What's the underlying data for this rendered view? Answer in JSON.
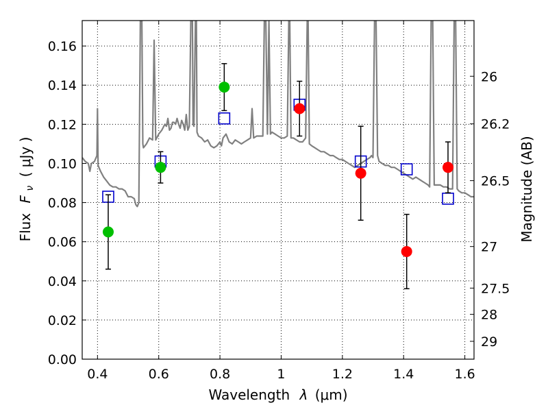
{
  "chart_data": {
    "type": "scatter",
    "xlabel_prefix": "Wavelength",
    "xlabel_symbol": "λ",
    "xlabel_unit": "(μm)",
    "ylabel_prefix": "Flux",
    "ylabel_symbol": "F",
    "ylabel_subscript": "ν",
    "ylabel_unit": "( μJy )",
    "y2label": "Magnitude (AB)",
    "xlim": [
      0.35,
      1.63
    ],
    "ylim": [
      0.0,
      0.173
    ],
    "grid": true,
    "x_ticks": [
      0.4,
      0.6,
      0.8,
      1.0,
      1.2,
      1.4,
      1.6
    ],
    "x_tick_labels": [
      "0.4",
      "0.6",
      "0.8",
      "1",
      "1.2",
      "1.4",
      "1.6"
    ],
    "y_ticks": [
      0.0,
      0.02,
      0.04,
      0.06,
      0.08,
      0.1,
      0.12,
      0.14,
      0.16
    ],
    "y_tick_labels": [
      "0.00",
      "0.02",
      "0.04",
      "0.06",
      "0.08",
      "0.10",
      "0.12",
      "0.14",
      "0.16"
    ],
    "mag_ticks": [
      {
        "label": "26",
        "mag": 26.0
      },
      {
        "label": "26.2",
        "mag": 26.2
      },
      {
        "label": "26.5",
        "mag": 26.5
      },
      {
        "label": "27",
        "mag": 27.0
      },
      {
        "label": "27.5",
        "mag": 27.5
      },
      {
        "label": "28",
        "mag": 28.0
      },
      {
        "label": "29",
        "mag": 29.0
      }
    ],
    "series": [
      {
        "kind": "line",
        "color": "#808080",
        "points": [
          [
            0.35,
            0.103
          ],
          [
            0.36,
            0.101
          ],
          [
            0.37,
            0.1
          ],
          [
            0.375,
            0.096
          ],
          [
            0.38,
            0.1
          ],
          [
            0.39,
            0.101
          ],
          [
            0.398,
            0.104
          ],
          [
            0.4,
            0.128
          ],
          [
            0.402,
            0.099
          ],
          [
            0.41,
            0.096
          ],
          [
            0.42,
            0.093
          ],
          [
            0.43,
            0.091
          ],
          [
            0.44,
            0.089
          ],
          [
            0.45,
            0.088
          ],
          [
            0.46,
            0.088
          ],
          [
            0.47,
            0.087
          ],
          [
            0.48,
            0.087
          ],
          [
            0.49,
            0.086
          ],
          [
            0.5,
            0.083
          ],
          [
            0.51,
            0.083
          ],
          [
            0.52,
            0.082
          ],
          [
            0.525,
            0.079
          ],
          [
            0.53,
            0.078
          ],
          [
            0.535,
            0.08
          ],
          [
            0.54,
            0.173
          ],
          [
            0.545,
            0.173
          ],
          [
            0.548,
            0.11
          ],
          [
            0.55,
            0.108
          ],
          [
            0.56,
            0.11
          ],
          [
            0.57,
            0.113
          ],
          [
            0.58,
            0.112
          ],
          [
            0.585,
            0.163
          ],
          [
            0.59,
            0.112
          ],
          [
            0.6,
            0.115
          ],
          [
            0.61,
            0.117
          ],
          [
            0.62,
            0.12
          ],
          [
            0.625,
            0.119
          ],
          [
            0.63,
            0.123
          ],
          [
            0.635,
            0.117
          ],
          [
            0.64,
            0.118
          ],
          [
            0.645,
            0.121
          ],
          [
            0.65,
            0.121
          ],
          [
            0.655,
            0.12
          ],
          [
            0.66,
            0.123
          ],
          [
            0.665,
            0.12
          ],
          [
            0.67,
            0.118
          ],
          [
            0.675,
            0.122
          ],
          [
            0.68,
            0.12
          ],
          [
            0.685,
            0.117
          ],
          [
            0.69,
            0.125
          ],
          [
            0.695,
            0.117
          ],
          [
            0.7,
            0.119
          ],
          [
            0.705,
            0.173
          ],
          [
            0.71,
            0.173
          ],
          [
            0.712,
            0.12
          ],
          [
            0.715,
            0.119
          ],
          [
            0.72,
            0.173
          ],
          [
            0.723,
            0.173
          ],
          [
            0.725,
            0.116
          ],
          [
            0.73,
            0.114
          ],
          [
            0.74,
            0.113
          ],
          [
            0.75,
            0.111
          ],
          [
            0.76,
            0.112
          ],
          [
            0.77,
            0.109
          ],
          [
            0.78,
            0.108
          ],
          [
            0.79,
            0.109
          ],
          [
            0.8,
            0.111
          ],
          [
            0.805,
            0.109
          ],
          [
            0.81,
            0.113
          ],
          [
            0.82,
            0.115
          ],
          [
            0.83,
            0.111
          ],
          [
            0.84,
            0.11
          ],
          [
            0.85,
            0.112
          ],
          [
            0.86,
            0.111
          ],
          [
            0.87,
            0.11
          ],
          [
            0.88,
            0.111
          ],
          [
            0.89,
            0.112
          ],
          [
            0.9,
            0.113
          ],
          [
            0.905,
            0.128
          ],
          [
            0.91,
            0.113
          ],
          [
            0.92,
            0.114
          ],
          [
            0.93,
            0.114
          ],
          [
            0.94,
            0.114
          ],
          [
            0.945,
            0.173
          ],
          [
            0.95,
            0.173
          ],
          [
            0.955,
            0.115
          ],
          [
            0.96,
            0.173
          ],
          [
            0.965,
            0.115
          ],
          [
            0.97,
            0.116
          ],
          [
            0.98,
            0.115
          ],
          [
            0.99,
            0.114
          ],
          [
            1.0,
            0.113
          ],
          [
            1.01,
            0.113
          ],
          [
            1.02,
            0.114
          ],
          [
            1.025,
            0.173
          ],
          [
            1.028,
            0.173
          ],
          [
            1.032,
            0.113
          ],
          [
            1.04,
            0.113
          ],
          [
            1.05,
            0.112
          ],
          [
            1.06,
            0.111
          ],
          [
            1.07,
            0.111
          ],
          [
            1.08,
            0.113
          ],
          [
            1.085,
            0.173
          ],
          [
            1.088,
            0.173
          ],
          [
            1.092,
            0.11
          ],
          [
            1.1,
            0.109
          ],
          [
            1.11,
            0.108
          ],
          [
            1.12,
            0.107
          ],
          [
            1.13,
            0.106
          ],
          [
            1.14,
            0.106
          ],
          [
            1.15,
            0.105
          ],
          [
            1.16,
            0.104
          ],
          [
            1.17,
            0.104
          ],
          [
            1.18,
            0.103
          ],
          [
            1.19,
            0.102
          ],
          [
            1.2,
            0.102
          ],
          [
            1.21,
            0.101
          ],
          [
            1.22,
            0.1
          ],
          [
            1.23,
            0.099
          ],
          [
            1.24,
            0.098
          ],
          [
            1.25,
            0.099
          ],
          [
            1.26,
            0.1
          ],
          [
            1.27,
            0.101
          ],
          [
            1.28,
            0.102
          ],
          [
            1.29,
            0.103
          ],
          [
            1.295,
            0.104
          ],
          [
            1.3,
            0.103
          ],
          [
            1.305,
            0.173
          ],
          [
            1.31,
            0.173
          ],
          [
            1.315,
            0.104
          ],
          [
            1.32,
            0.101
          ],
          [
            1.33,
            0.1
          ],
          [
            1.34,
            0.099
          ],
          [
            1.35,
            0.099
          ],
          [
            1.36,
            0.098
          ],
          [
            1.37,
            0.098
          ],
          [
            1.38,
            0.097
          ],
          [
            1.39,
            0.096
          ],
          [
            1.4,
            0.095
          ],
          [
            1.41,
            0.094
          ],
          [
            1.42,
            0.093
          ],
          [
            1.43,
            0.092
          ],
          [
            1.44,
            0.093
          ],
          [
            1.45,
            0.092
          ],
          [
            1.46,
            0.091
          ],
          [
            1.47,
            0.09
          ],
          [
            1.48,
            0.089
          ],
          [
            1.485,
            0.088
          ],
          [
            1.49,
            0.173
          ],
          [
            1.495,
            0.173
          ],
          [
            1.5,
            0.089
          ],
          [
            1.51,
            0.089
          ],
          [
            1.52,
            0.089
          ],
          [
            1.53,
            0.088
          ],
          [
            1.54,
            0.088
          ],
          [
            1.55,
            0.087
          ],
          [
            1.56,
            0.087
          ],
          [
            1.565,
            0.173
          ],
          [
            1.57,
            0.173
          ],
          [
            1.575,
            0.087
          ],
          [
            1.58,
            0.086
          ],
          [
            1.59,
            0.085
          ],
          [
            1.6,
            0.085
          ],
          [
            1.61,
            0.084
          ],
          [
            1.62,
            0.083
          ],
          [
            1.63,
            0.083
          ]
        ]
      },
      {
        "kind": "marker-circle",
        "color": "#00bf00",
        "points": [
          {
            "x": 0.435,
            "y": 0.065,
            "err": 0.019
          },
          {
            "x": 0.606,
            "y": 0.098,
            "err": 0.008
          },
          {
            "x": 0.814,
            "y": 0.139,
            "err": 0.012
          }
        ]
      },
      {
        "kind": "marker-circle",
        "color": "#ff0000",
        "points": [
          {
            "x": 1.06,
            "y": 0.128,
            "err": 0.014
          },
          {
            "x": 1.26,
            "y": 0.095,
            "err": 0.024
          },
          {
            "x": 1.41,
            "y": 0.055,
            "err": 0.019
          },
          {
            "x": 1.545,
            "y": 0.098,
            "err": 0.013
          }
        ]
      },
      {
        "kind": "marker-square",
        "color": "#0000cc",
        "points": [
          {
            "x": 0.435,
            "y": 0.083
          },
          {
            "x": 0.606,
            "y": 0.101
          },
          {
            "x": 0.814,
            "y": 0.123
          },
          {
            "x": 1.06,
            "y": 0.13
          },
          {
            "x": 1.26,
            "y": 0.101
          },
          {
            "x": 1.41,
            "y": 0.097
          },
          {
            "x": 1.545,
            "y": 0.082
          }
        ]
      }
    ]
  }
}
